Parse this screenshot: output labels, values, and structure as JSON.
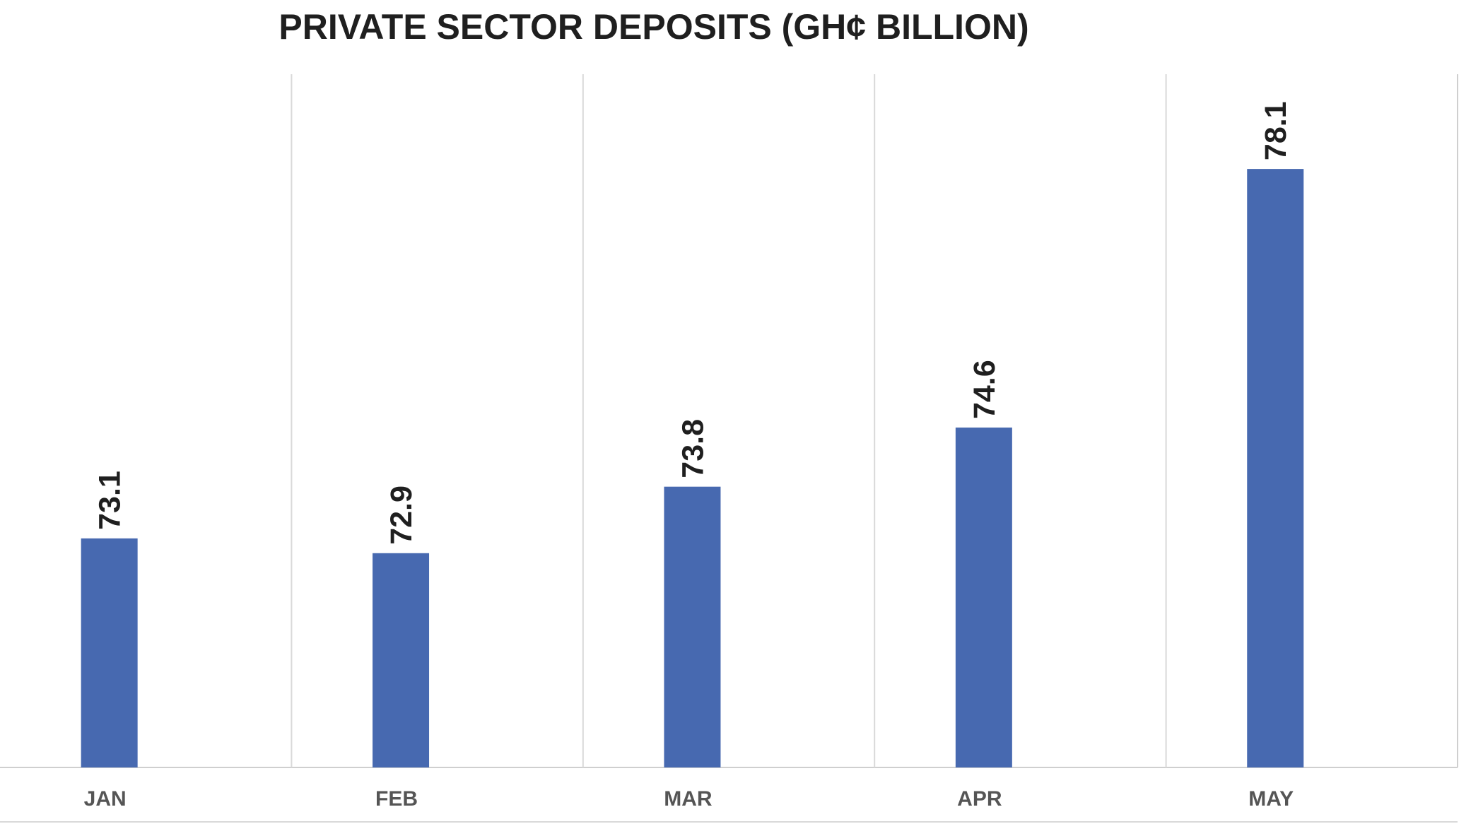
{
  "chart_data": {
    "type": "bar",
    "title": "PRIVATE SECTOR DEPOSITS (GH¢ BILLION)",
    "xlabel": "",
    "ylabel": "",
    "categories": [
      "JAN",
      "FEB",
      "MAR",
      "APR",
      "MAY"
    ],
    "values": [
      73.1,
      72.9,
      73.8,
      74.6,
      78.1
    ],
    "data_labels": [
      "73.1",
      "72.9",
      "73.8",
      "74.6",
      "78.1"
    ],
    "ylim": [
      70,
      79
    ],
    "grid": "vertical category separators",
    "legend": "none",
    "colors": {
      "bar": "#4769b0",
      "grid": "#d9d9d9",
      "axis": "#cfcfcf"
    }
  }
}
